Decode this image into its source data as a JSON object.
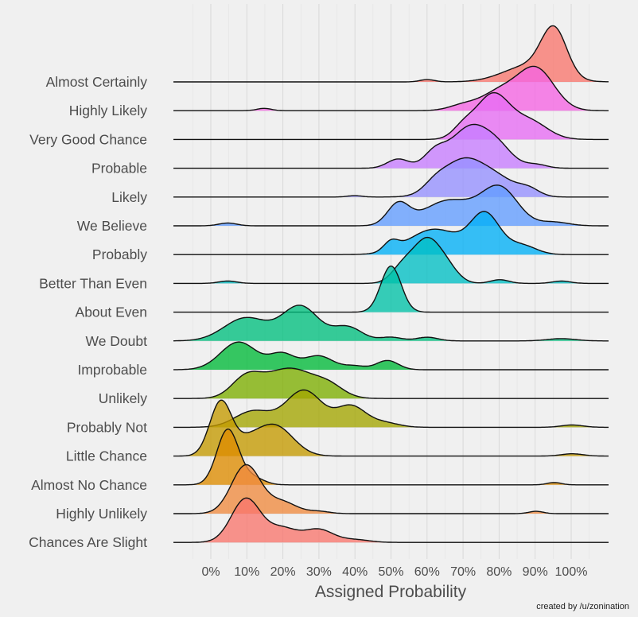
{
  "chart_data": {
    "type": "ridgeline",
    "title": "",
    "xlabel": "Assigned Probability",
    "ylabel": "",
    "xlim": [
      -10,
      110
    ],
    "x_ticks": [
      0,
      10,
      20,
      30,
      40,
      50,
      60,
      70,
      80,
      90,
      100
    ],
    "x_tick_labels": [
      "0%",
      "10%",
      "20%",
      "30%",
      "40%",
      "50%",
      "60%",
      "70%",
      "80%",
      "90%",
      "100%"
    ],
    "grid": true,
    "credit": "created by /u/zonination",
    "series": [
      {
        "name": "Almost Certainly",
        "color": "#f8766d",
        "components": [
          [
            95,
            3.5,
            1.0
          ],
          [
            88,
            7,
            0.35
          ],
          [
            60,
            2,
            0.05
          ]
        ]
      },
      {
        "name": "Highly Likely",
        "color": "#f564e3",
        "components": [
          [
            90,
            5,
            0.9
          ],
          [
            80,
            5,
            0.4
          ],
          [
            70,
            4,
            0.12
          ],
          [
            15,
            2,
            0.05
          ]
        ]
      },
      {
        "name": "Very Good Chance",
        "color": "#e76bf3",
        "components": [
          [
            78,
            4.5,
            0.95
          ],
          [
            88,
            5,
            0.4
          ],
          [
            70,
            3,
            0.25
          ]
        ]
      },
      {
        "name": "Probable",
        "color": "#c77cff",
        "components": [
          [
            72,
            5.5,
            0.9
          ],
          [
            80,
            4,
            0.3
          ],
          [
            62,
            3,
            0.3
          ],
          [
            52,
            3,
            0.2
          ],
          [
            90,
            3,
            0.08
          ]
        ]
      },
      {
        "name": "Likely",
        "color": "#9590ff",
        "components": [
          [
            70,
            6,
            0.8
          ],
          [
            80,
            5,
            0.3
          ],
          [
            88,
            3,
            0.15
          ],
          [
            62,
            3,
            0.15
          ],
          [
            40,
            2,
            0.03
          ]
        ]
      },
      {
        "name": "We Believe",
        "color": "#619cff",
        "components": [
          [
            80,
            5,
            0.8
          ],
          [
            66,
            7,
            0.55
          ],
          [
            52,
            3,
            0.45
          ],
          [
            95,
            4,
            0.08
          ],
          [
            5,
            2.5,
            0.06
          ]
        ]
      },
      {
        "name": "Probably",
        "color": "#00b0f6",
        "components": [
          [
            76,
            4,
            0.85
          ],
          [
            62,
            7,
            0.55
          ],
          [
            86,
            4,
            0.2
          ],
          [
            50,
            2,
            0.2
          ]
        ]
      },
      {
        "name": "Better Than Even",
        "color": "#00bfc4",
        "components": [
          [
            60,
            4,
            0.95
          ],
          [
            53,
            3,
            0.3
          ],
          [
            66,
            3,
            0.2
          ],
          [
            80,
            2.5,
            0.08
          ],
          [
            97,
            2.5,
            0.05
          ],
          [
            5,
            2.5,
            0.05
          ]
        ]
      },
      {
        "name": "About Even",
        "color": "#00c1a7",
        "components": [
          [
            50,
            2.8,
            1.0
          ]
        ]
      },
      {
        "name": "We Doubt",
        "color": "#00bf7d",
        "components": [
          [
            25,
            5,
            0.75
          ],
          [
            10,
            6,
            0.5
          ],
          [
            38,
            4,
            0.3
          ],
          [
            50,
            3,
            0.08
          ],
          [
            60,
            3,
            0.08
          ],
          [
            97,
            4,
            0.05
          ]
        ]
      },
      {
        "name": "Improbable",
        "color": "#00ba38",
        "components": [
          [
            8,
            5,
            0.6
          ],
          [
            20,
            3.5,
            0.33
          ],
          [
            30,
            4,
            0.3
          ],
          [
            49,
            3,
            0.2
          ],
          [
            40,
            3,
            0.08
          ]
        ]
      },
      {
        "name": "Unlikely",
        "color": "#7cae00",
        "components": [
          [
            22,
            7,
            0.65
          ],
          [
            10,
            4,
            0.4
          ],
          [
            33,
            4,
            0.2
          ]
        ]
      },
      {
        "name": "Probably Not",
        "color": "#a3a500",
        "components": [
          [
            26,
            5,
            0.8
          ],
          [
            39,
            4,
            0.45
          ],
          [
            12,
            5,
            0.35
          ],
          [
            48,
            4,
            0.1
          ],
          [
            100,
            3,
            0.05
          ]
        ]
      },
      {
        "name": "Little Chance",
        "color": "#c49a00",
        "components": [
          [
            3,
            3,
            1.15
          ],
          [
            18,
            5,
            0.65
          ],
          [
            10,
            4,
            0.25
          ],
          [
            100,
            3,
            0.05
          ]
        ]
      },
      {
        "name": "Almost No Chance",
        "color": "#de8c00",
        "components": [
          [
            5,
            3,
            1.2
          ],
          [
            12,
            3,
            0.15
          ],
          [
            95,
            2,
            0.05
          ]
        ]
      },
      {
        "name": "Highly Unlikely",
        "color": "#f08b3f",
        "components": [
          [
            10,
            4,
            1.05
          ],
          [
            20,
            4,
            0.25
          ],
          [
            30,
            3,
            0.05
          ],
          [
            90,
            2,
            0.05
          ]
        ]
      },
      {
        "name": "Chances Are Slight",
        "color": "#f8766d",
        "components": [
          [
            10,
            4,
            0.95
          ],
          [
            20,
            4,
            0.3
          ],
          [
            30,
            4,
            0.28
          ],
          [
            40,
            4,
            0.06
          ]
        ]
      }
    ]
  }
}
